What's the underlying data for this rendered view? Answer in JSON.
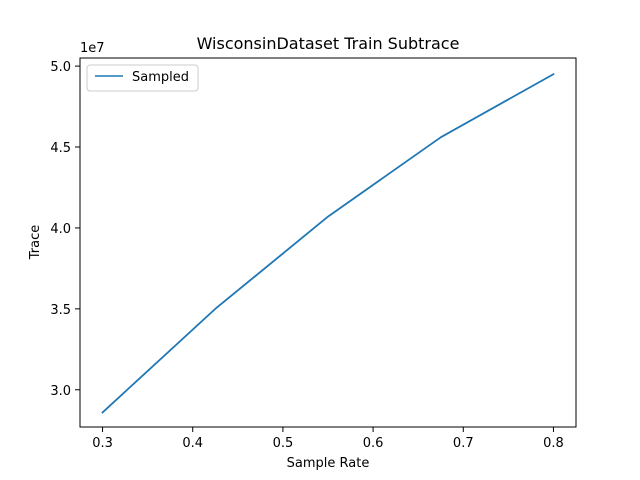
{
  "chart_data": {
    "type": "line",
    "title": "WisconsinDataset Train Subtrace",
    "xlabel": "Sample Rate",
    "ylabel": "Trace",
    "y_offset_label": "1e7",
    "xlim": [
      0.275,
      0.825
    ],
    "ylim": [
      2.77,
      5.05
    ],
    "x_ticks": [
      0.3,
      0.4,
      0.5,
      0.6,
      0.7,
      0.8
    ],
    "x_tick_labels": [
      "0.3",
      "0.4",
      "0.5",
      "0.6",
      "0.7",
      "0.8"
    ],
    "y_ticks": [
      3.0,
      3.5,
      4.0,
      4.5,
      5.0
    ],
    "y_tick_labels": [
      "3.0",
      "3.5",
      "4.0",
      "4.5",
      "5.0"
    ],
    "grid": false,
    "legend_position": "top-left",
    "series": [
      {
        "name": "Sampled",
        "color": "#1f77b4",
        "x": [
          0.3,
          0.425,
          0.55,
          0.675,
          0.8
        ],
        "y": [
          2.86,
          3.5,
          4.07,
          4.56,
          4.95
        ]
      }
    ]
  }
}
